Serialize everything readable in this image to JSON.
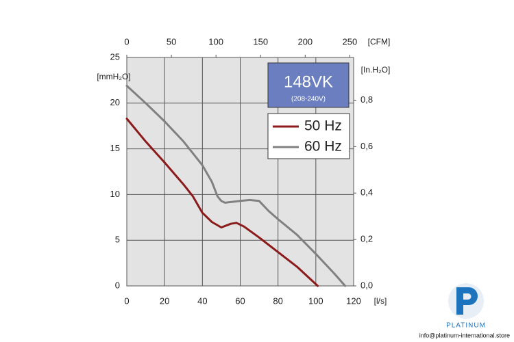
{
  "chart_data": {
    "type": "line",
    "model": "148VK",
    "model_subtitle": "(208-240V)",
    "xlabel": "[l/s]",
    "ylabel": "[mmH₂O]",
    "x2label": "[CFM]",
    "y2label": "[In.H₂O]",
    "xlim": [
      0,
      120
    ],
    "xticks": [
      0,
      20,
      40,
      60,
      80,
      100,
      120
    ],
    "ylim": [
      0,
      25
    ],
    "yticks": [
      0,
      5,
      10,
      15,
      20,
      25
    ],
    "x2lim": [
      0,
      254.3
    ],
    "x2ticks": [
      0,
      50,
      100,
      150,
      200,
      250
    ],
    "y2lim": [
      0,
      0.984
    ],
    "y2ticks": [
      {
        "value": 0,
        "label": "0,0"
      },
      {
        "value": 0.2,
        "label": "0,2"
      },
      {
        "value": 0.4,
        "label": "0,4"
      },
      {
        "value": 0.6,
        "label": "0,6"
      },
      {
        "value": 0.8,
        "label": "0,8"
      }
    ],
    "grid": true,
    "legend": "upper right",
    "series": [
      {
        "name": "50 Hz",
        "color": "#8b1a1a",
        "x": [
          0,
          10,
          20,
          30,
          35,
          40,
          45,
          50,
          55,
          58,
          62,
          70,
          80,
          90,
          101
        ],
        "values": [
          18.3,
          15.8,
          13.5,
          11.1,
          9.8,
          8.0,
          7.0,
          6.4,
          6.8,
          6.9,
          6.5,
          5.3,
          3.7,
          2.1,
          0
        ]
      },
      {
        "name": "60 Hz",
        "color": "#808080",
        "x": [
          0,
          10,
          20,
          30,
          40,
          45,
          48,
          50,
          52,
          60,
          65,
          70,
          75,
          80,
          90,
          100,
          105,
          110,
          115.5
        ],
        "values": [
          21.9,
          20.0,
          18.0,
          15.8,
          13.2,
          11.4,
          9.8,
          9.3,
          9.1,
          9.3,
          9.4,
          9.3,
          8.2,
          7.3,
          5.6,
          3.5,
          2.4,
          1.3,
          0
        ]
      }
    ]
  },
  "logo_text": "PLATINUM",
  "footer_email": "info@platinum-international.store"
}
